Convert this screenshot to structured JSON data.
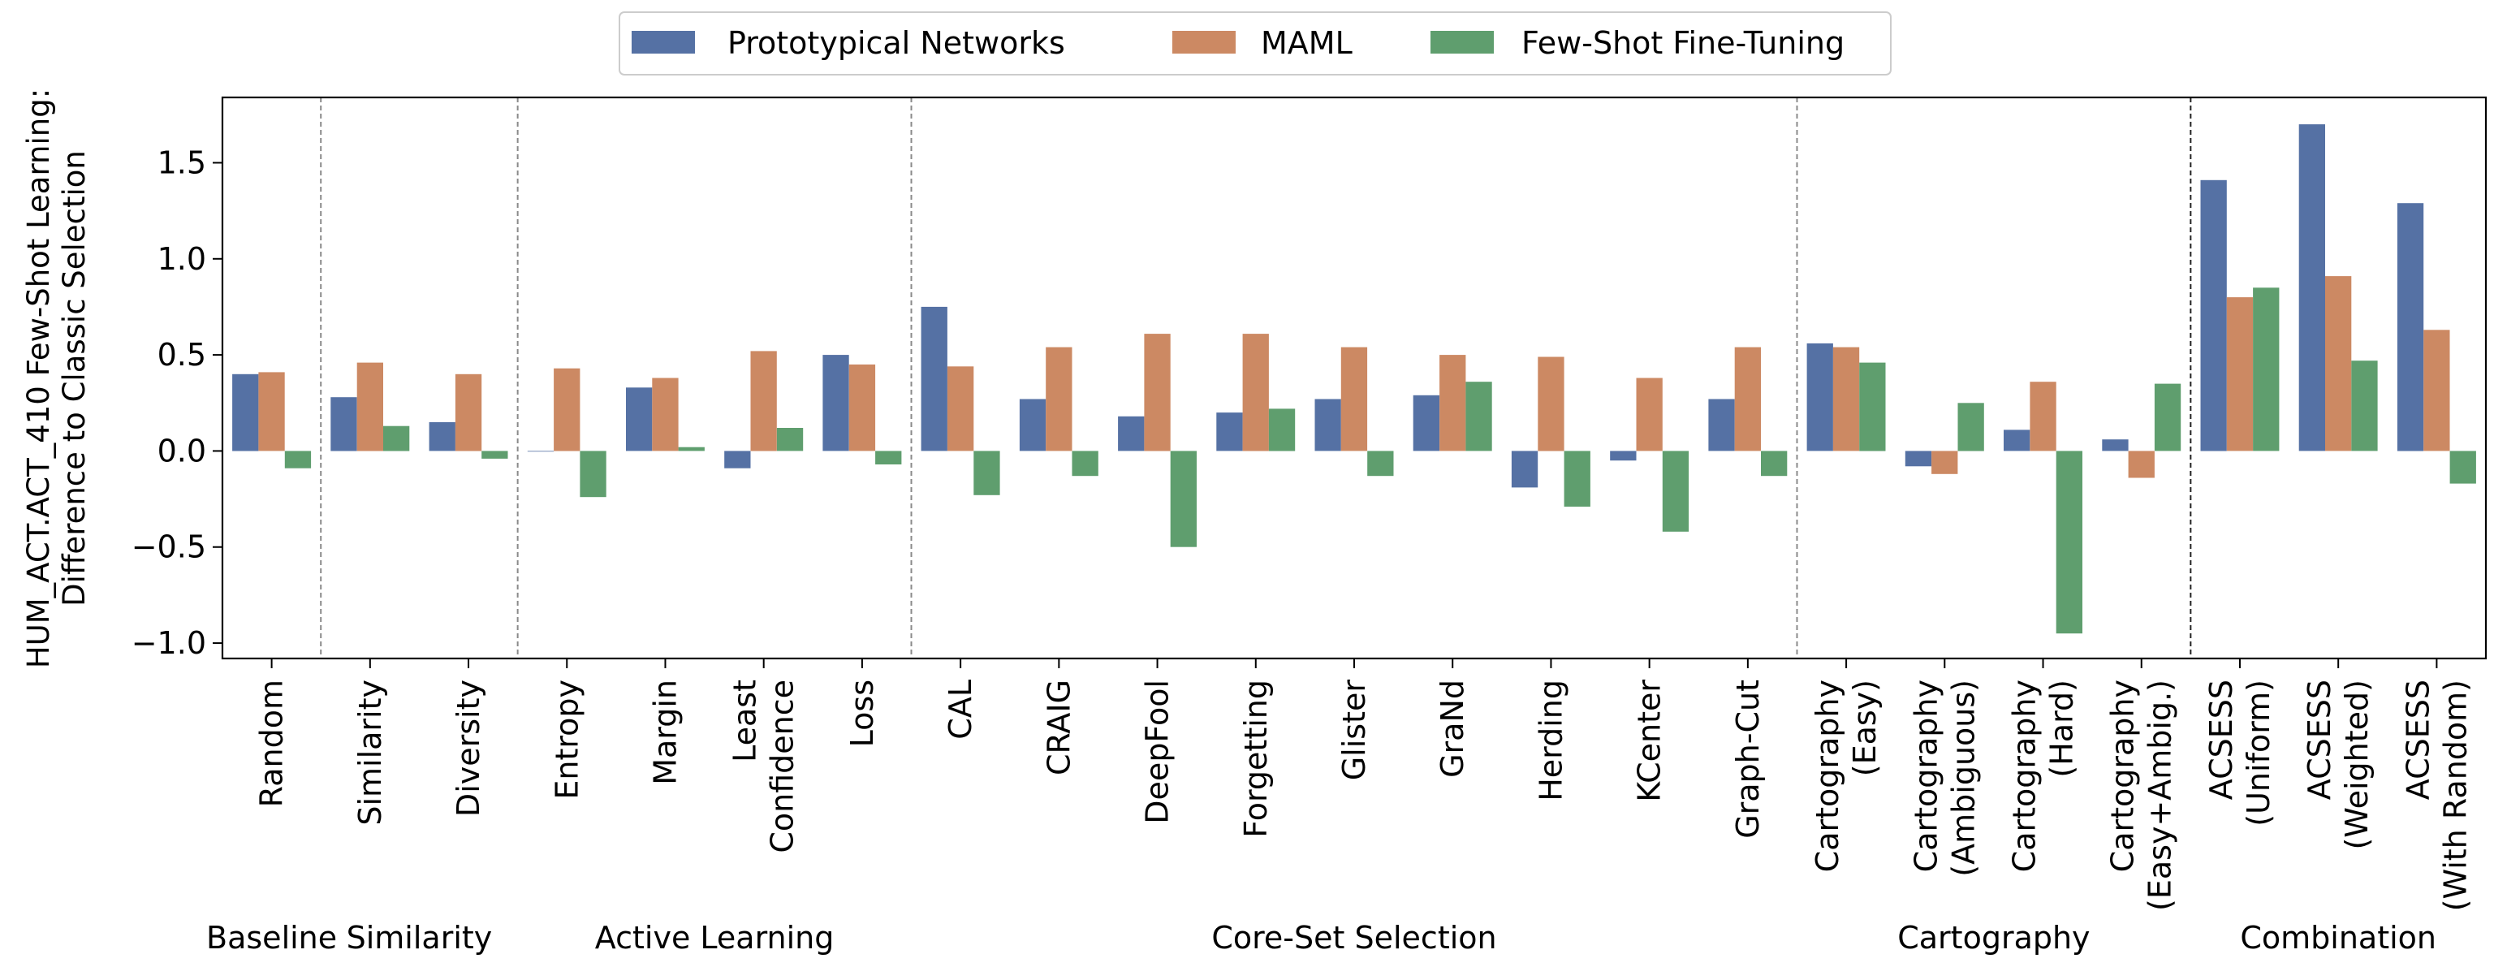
{
  "chart_data": {
    "type": "bar",
    "title": "",
    "xlabel": "",
    "ylabel_lines": [
      "HUM_ACT.ACT_410 Few-Shot Learning:",
      "Difference to Classic Selection"
    ],
    "ylim": [
      -1.08,
      1.84
    ],
    "yticks": [
      -1.0,
      -0.5,
      0.0,
      0.5,
      1.0,
      1.5
    ],
    "ytick_labels": [
      "−1.0",
      "−0.5",
      "0.0",
      "0.5",
      "1.0",
      "1.5"
    ],
    "legend_position": "top-center",
    "categories": [
      [
        "Random"
      ],
      [
        "Similarity"
      ],
      [
        "Diversity"
      ],
      [
        "Entropy"
      ],
      [
        "Margin"
      ],
      [
        "Least",
        "Confidence"
      ],
      [
        "Loss"
      ],
      [
        "CAL"
      ],
      [
        "CRAIG"
      ],
      [
        "DeepFool"
      ],
      [
        "Forgetting"
      ],
      [
        "Glister"
      ],
      [
        "GraNd"
      ],
      [
        "Herding"
      ],
      [
        "KCenter"
      ],
      [
        "Graph-Cut"
      ],
      [
        "Cartography",
        "(Easy)"
      ],
      [
        "Cartography",
        "(Ambiguous)"
      ],
      [
        "Cartography",
        "(Hard)"
      ],
      [
        "Cartography",
        "(Easy+Ambig.)"
      ],
      [
        "ACSESS",
        "(Uniform)"
      ],
      [
        "ACSESS",
        "(Weighted)"
      ],
      [
        "ACSESS",
        "(With Random)"
      ]
    ],
    "series": [
      {
        "name": "Prototypical Networks",
        "color": "#5571a4",
        "values": [
          0.4,
          0.28,
          0.15,
          0.0,
          0.33,
          -0.09,
          0.5,
          0.75,
          0.27,
          0.18,
          0.2,
          0.27,
          0.29,
          -0.19,
          -0.05,
          0.27,
          0.56,
          -0.08,
          0.11,
          0.06,
          1.41,
          1.7,
          1.29
        ]
      },
      {
        "name": "MAML",
        "color": "#cc8963",
        "values": [
          0.41,
          0.46,
          0.4,
          0.43,
          0.38,
          0.52,
          0.45,
          0.44,
          0.54,
          0.61,
          0.61,
          0.54,
          0.5,
          0.49,
          0.38,
          0.54,
          0.54,
          -0.12,
          0.36,
          -0.14,
          0.8,
          0.91,
          0.63
        ]
      },
      {
        "name": "Few-Shot Fine-Tuning",
        "color": "#5f9e6e",
        "values": [
          -0.09,
          0.13,
          -0.04,
          -0.24,
          0.02,
          0.12,
          -0.07,
          -0.23,
          -0.13,
          -0.5,
          0.22,
          -0.13,
          0.36,
          -0.29,
          -0.42,
          -0.13,
          0.46,
          0.25,
          -0.95,
          0.35,
          0.85,
          0.47,
          -0.17
        ]
      }
    ],
    "groups": [
      {
        "name": "Baseline",
        "start": 0,
        "end": 0
      },
      {
        "name": "Similarity",
        "start": 1,
        "end": 2
      },
      {
        "name": "Active Learning",
        "start": 3,
        "end": 6
      },
      {
        "name": "Core-Set Selection",
        "start": 7,
        "end": 15
      },
      {
        "name": "Cartography",
        "start": 16,
        "end": 19
      },
      {
        "name": "Combination",
        "start": 20,
        "end": 22
      }
    ]
  }
}
